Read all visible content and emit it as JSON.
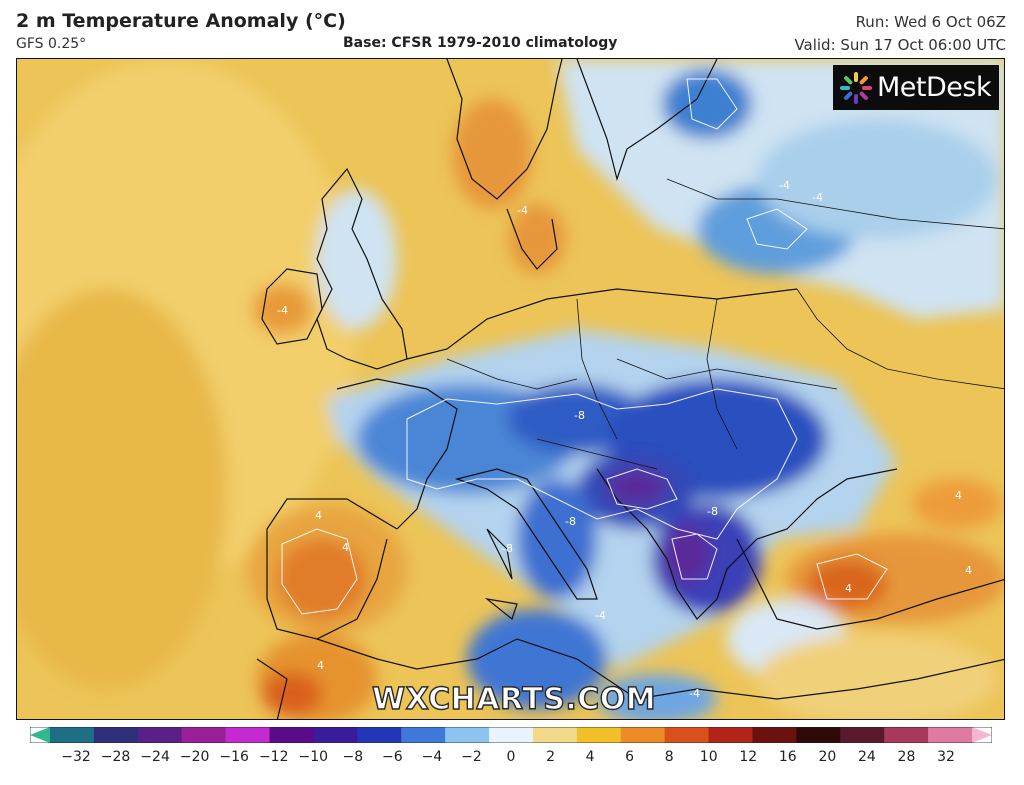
{
  "header": {
    "title": "2 m Temperature Anomaly (°C)",
    "model": "GFS 0.25°",
    "base": "Base: CFSR 1979-2010 climatology",
    "run": "Run: Wed 6 Oct 06Z",
    "valid": "Valid: Sun 17 Oct 06:00 UTC"
  },
  "logo": {
    "text": "MetDesk"
  },
  "watermark": "WXCHARTS.COM",
  "colorbar": {
    "ticks": [
      "−32",
      "−28",
      "−24",
      "−20",
      "−16",
      "−12",
      "−10",
      "−8",
      "−6",
      "−4",
      "−2",
      "0",
      "2",
      "4",
      "6",
      "8",
      "10",
      "12",
      "16",
      "20",
      "24",
      "28",
      "32"
    ],
    "colors": [
      "#2fb88e",
      "#1d6f86",
      "#2e2f7a",
      "#5b1f88",
      "#9b1f9b",
      "#c42ad0",
      "#5a0b8a",
      "#3a1b9c",
      "#2436b8",
      "#3f78d8",
      "#8cc4ef",
      "#e8f3fb",
      "#f2d98a",
      "#f0bf2a",
      "#ec8b27",
      "#d8501b",
      "#b22418",
      "#6b1210",
      "#2d0a08",
      "#5a1a2a",
      "#a8385c",
      "#e07aa0",
      "#f4b6d2"
    ]
  },
  "contour_labels": [
    "-4",
    "-4",
    "-4",
    "-4",
    "-8",
    "-8",
    "-8",
    "-8",
    "4",
    "4",
    "4",
    "4",
    "4",
    "4",
    "-4",
    "-4"
  ]
}
